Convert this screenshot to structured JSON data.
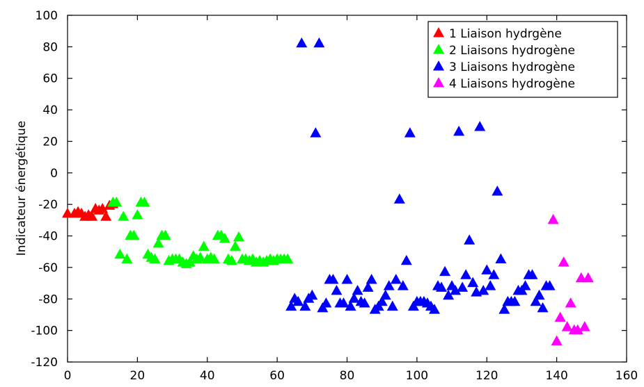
{
  "chart_data": {
    "type": "scatter",
    "title": "",
    "xlabel": "",
    "ylabel": "Indicateur énergétique",
    "xlim": [
      0,
      160
    ],
    "ylim": [
      -120,
      100
    ],
    "xticks": [
      0,
      20,
      40,
      60,
      80,
      100,
      120,
      140,
      160
    ],
    "yticks": [
      -120,
      -100,
      -80,
      -60,
      -40,
      -20,
      0,
      20,
      40,
      60,
      80,
      100
    ],
    "grid": false,
    "legend_position": "top-right",
    "marker": "triangle",
    "series": [
      {
        "name": "1 Liaison hydrgène",
        "color": "#ff0000",
        "points": [
          [
            0,
            -26
          ],
          [
            2,
            -26
          ],
          [
            3,
            -25
          ],
          [
            4,
            -26
          ],
          [
            5,
            -28
          ],
          [
            6,
            -27
          ],
          [
            7,
            -28
          ],
          [
            8,
            -23
          ],
          [
            9,
            -24
          ],
          [
            10,
            -23
          ],
          [
            11,
            -28
          ],
          [
            12,
            -21
          ],
          [
            13,
            -20
          ]
        ]
      },
      {
        "name": "2 Liaisons hydrogène",
        "color": "#00ff00",
        "points": [
          [
            13,
            -19
          ],
          [
            14,
            -19
          ],
          [
            15,
            -52
          ],
          [
            16,
            -28
          ],
          [
            17,
            -55
          ],
          [
            18,
            -40
          ],
          [
            19,
            -40
          ],
          [
            20,
            -27
          ],
          [
            21,
            -19
          ],
          [
            22,
            -19
          ],
          [
            23,
            -52
          ],
          [
            24,
            -54
          ],
          [
            25,
            -55
          ],
          [
            26,
            -45
          ],
          [
            27,
            -40
          ],
          [
            28,
            -40
          ],
          [
            29,
            -56
          ],
          [
            30,
            -55
          ],
          [
            31,
            -55
          ],
          [
            32,
            -55
          ],
          [
            33,
            -57
          ],
          [
            34,
            -58
          ],
          [
            35,
            -57
          ],
          [
            36,
            -53
          ],
          [
            37,
            -55
          ],
          [
            38,
            -54
          ],
          [
            39,
            -47
          ],
          [
            40,
            -55
          ],
          [
            41,
            -54
          ],
          [
            42,
            -55
          ],
          [
            43,
            -40
          ],
          [
            44,
            -40
          ],
          [
            45,
            -42
          ],
          [
            46,
            -55
          ],
          [
            47,
            -56
          ],
          [
            48,
            -47
          ],
          [
            49,
            -41
          ],
          [
            50,
            -55
          ],
          [
            51,
            -55
          ],
          [
            52,
            -56
          ],
          [
            53,
            -55
          ],
          [
            54,
            -57
          ],
          [
            55,
            -56
          ],
          [
            56,
            -57
          ],
          [
            57,
            -56
          ],
          [
            58,
            -55
          ],
          [
            59,
            -56
          ],
          [
            60,
            -55
          ],
          [
            61,
            -55
          ],
          [
            62,
            -55
          ],
          [
            63,
            -55
          ]
        ]
      },
      {
        "name": "3 Liaisons hydrogène",
        "color": "#0000ff",
        "points": [
          [
            64,
            -85
          ],
          [
            65,
            -80
          ],
          [
            66,
            -82
          ],
          [
            67,
            82
          ],
          [
            68,
            -85
          ],
          [
            69,
            -80
          ],
          [
            70,
            -78
          ],
          [
            71,
            25
          ],
          [
            72,
            82
          ],
          [
            73,
            -86
          ],
          [
            74,
            -83
          ],
          [
            75,
            -68
          ],
          [
            76,
            -68
          ],
          [
            77,
            -75
          ],
          [
            78,
            -83
          ],
          [
            79,
            -83
          ],
          [
            80,
            -68
          ],
          [
            81,
            -85
          ],
          [
            82,
            -80
          ],
          [
            83,
            -75
          ],
          [
            84,
            -82
          ],
          [
            85,
            -83
          ],
          [
            86,
            -73
          ],
          [
            87,
            -68
          ],
          [
            88,
            -87
          ],
          [
            89,
            -85
          ],
          [
            90,
            -82
          ],
          [
            91,
            -78
          ],
          [
            92,
            -72
          ],
          [
            93,
            -85
          ],
          [
            94,
            -68
          ],
          [
            95,
            -17
          ],
          [
            96,
            -72
          ],
          [
            97,
            -56
          ],
          [
            98,
            25
          ],
          [
            99,
            -85
          ],
          [
            100,
            -82
          ],
          [
            101,
            -82
          ],
          [
            102,
            -82
          ],
          [
            103,
            -83
          ],
          [
            104,
            -85
          ],
          [
            105,
            -87
          ],
          [
            106,
            -72
          ],
          [
            107,
            -73
          ],
          [
            108,
            -63
          ],
          [
            109,
            -78
          ],
          [
            110,
            -72
          ],
          [
            111,
            -75
          ],
          [
            112,
            26
          ],
          [
            113,
            -73
          ],
          [
            114,
            -65
          ],
          [
            115,
            -43
          ],
          [
            116,
            -70
          ],
          [
            117,
            -76
          ],
          [
            118,
            29
          ],
          [
            119,
            -75
          ],
          [
            120,
            -62
          ],
          [
            121,
            -72
          ],
          [
            122,
            -65
          ],
          [
            123,
            -12
          ],
          [
            124,
            -55
          ],
          [
            125,
            -87
          ],
          [
            126,
            -82
          ],
          [
            127,
            -82
          ],
          [
            128,
            -82
          ],
          [
            129,
            -75
          ],
          [
            130,
            -75
          ],
          [
            131,
            -72
          ],
          [
            132,
            -65
          ],
          [
            133,
            -65
          ],
          [
            134,
            -82
          ],
          [
            135,
            -78
          ],
          [
            136,
            -86
          ],
          [
            137,
            -72
          ],
          [
            138,
            -72
          ]
        ]
      },
      {
        "name": "4 Liaisons hydrogène",
        "color": "#ff00ff",
        "points": [
          [
            139,
            -30
          ],
          [
            140,
            -107
          ],
          [
            141,
            -92
          ],
          [
            142,
            -57
          ],
          [
            143,
            -98
          ],
          [
            144,
            -83
          ],
          [
            145,
            -100
          ],
          [
            146,
            -100
          ],
          [
            147,
            -67
          ],
          [
            148,
            -98
          ],
          [
            149,
            -67
          ]
        ]
      }
    ]
  }
}
